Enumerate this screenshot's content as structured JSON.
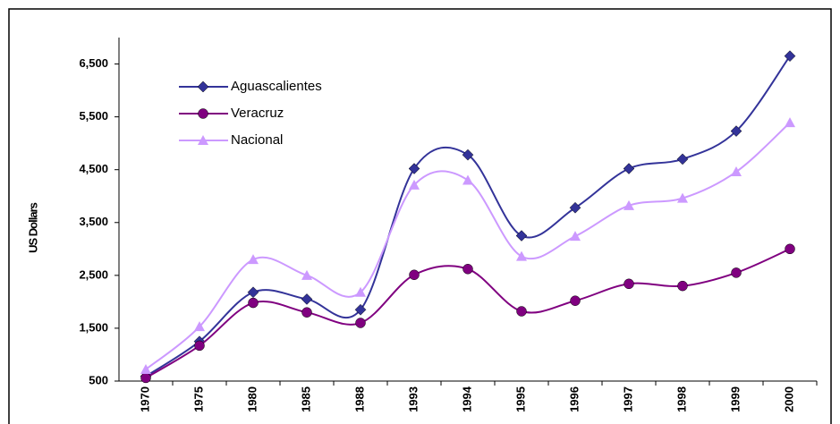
{
  "chart_data": {
    "type": "line",
    "y_label": "US Dollars",
    "categories": [
      "1970",
      "1975",
      "1980",
      "1985",
      "1988",
      "1993",
      "1994",
      "1995",
      "1996",
      "1997",
      "1998",
      "1999",
      "2000"
    ],
    "series": [
      {
        "name": "Aguascalientes",
        "color": "#333399",
        "marker": "diamond",
        "values": [
          590,
          1250,
          2180,
          2050,
          1850,
          4520,
          4780,
          3250,
          3780,
          4520,
          4700,
          5230,
          6650
        ]
      },
      {
        "name": "Veracruz",
        "color": "#800080",
        "marker": "circle",
        "values": [
          560,
          1170,
          1980,
          1800,
          1600,
          2510,
          2620,
          1820,
          2020,
          2340,
          2300,
          2550,
          3000
        ]
      },
      {
        "name": "Nacional",
        "color": "#CC99FF",
        "marker": "triangle",
        "values": [
          720,
          1530,
          2800,
          2500,
          2180,
          4210,
          4300,
          2860,
          3240,
          3820,
          3960,
          4460,
          5390
        ]
      }
    ],
    "ylim": [
      500,
      7000
    ],
    "yticks": [
      500,
      {
        "value": 1500,
        "label": "1,500"
      },
      {
        "value": 2500,
        "label": "2,500"
      },
      {
        "value": 3500,
        "label": "3,500"
      },
      {
        "value": 4500,
        "label": "4,500"
      },
      {
        "value": 5500,
        "label": "5,500"
      },
      {
        "value": 6500,
        "label": "6,500"
      }
    ],
    "smooth": true
  }
}
